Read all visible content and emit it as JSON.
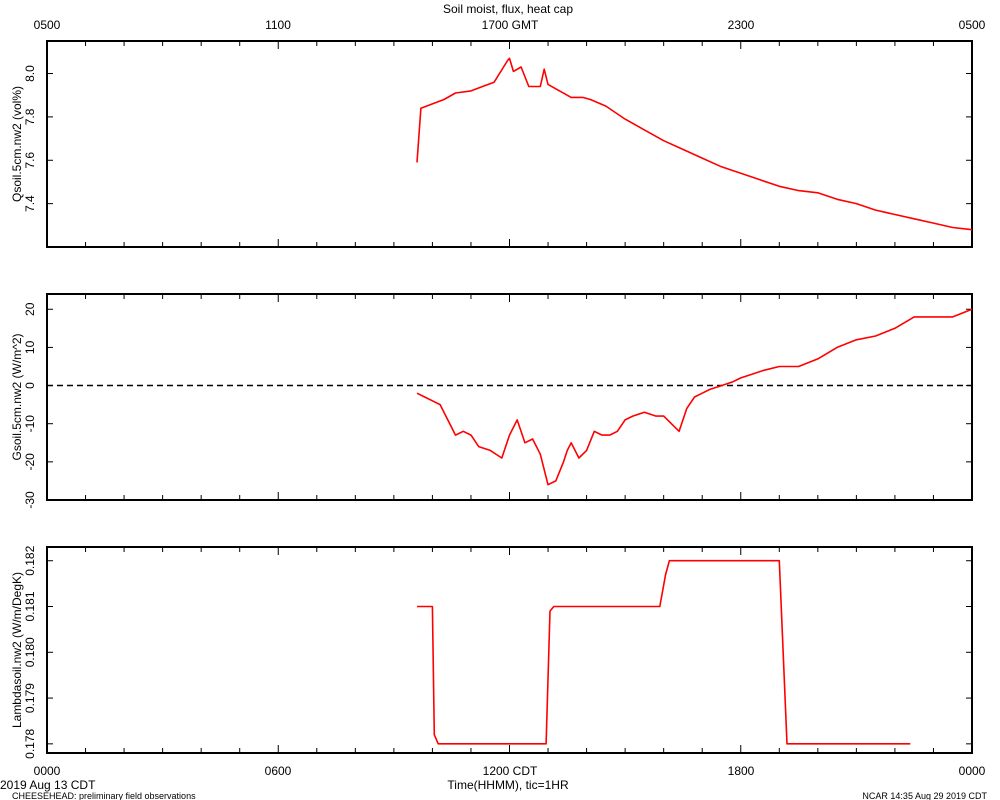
{
  "chart_data": {
    "type": "line",
    "title": "Soil moist, flux, heat cap",
    "top_axis": {
      "tick_labels": [
        "0500",
        "1100",
        "1700 GMT",
        "2300",
        "0500"
      ]
    },
    "bottom_axis": {
      "tick_labels": [
        "0000",
        "0600",
        "1200 CDT",
        "1800",
        "0000"
      ],
      "xlabel": "Time(HHMM), tic=1HR",
      "range_hours": [
        0,
        24
      ]
    },
    "footer": {
      "date": "2019 Aug 13 CDT",
      "left": "CHEESEHEAD: preliminary field observations",
      "right": "NCAR 14:35 Aug 29 2019 CDT"
    },
    "panels": [
      {
        "ylabel": "Qsoil.5cm.nw2 (vol%)",
        "ylim": [
          7.2,
          8.15
        ],
        "yticks": [
          7.4,
          7.6,
          7.8,
          8.0
        ],
        "ytick_labels": [
          "7.4",
          "7.6",
          "7.8",
          "8.0"
        ],
        "color": "#ff0000",
        "x": [
          9.6,
          9.7,
          10.0,
          10.3,
          10.6,
          11.0,
          11.3,
          11.6,
          11.95,
          12.0,
          12.1,
          12.3,
          12.5,
          12.8,
          12.9,
          13.0,
          13.3,
          13.6,
          13.9,
          14.1,
          14.5,
          15.0,
          15.5,
          16.0,
          16.5,
          17.0,
          17.5,
          18.0,
          18.5,
          19.0,
          19.5,
          20.0,
          20.5,
          21.0,
          21.5,
          22.0,
          22.5,
          23.0,
          23.5,
          24.0
        ],
        "y": [
          7.59,
          7.84,
          7.86,
          7.88,
          7.91,
          7.92,
          7.94,
          7.96,
          8.06,
          8.07,
          8.01,
          8.03,
          7.94,
          7.94,
          8.02,
          7.95,
          7.92,
          7.89,
          7.89,
          7.88,
          7.85,
          7.79,
          7.74,
          7.69,
          7.65,
          7.61,
          7.57,
          7.54,
          7.51,
          7.48,
          7.46,
          7.45,
          7.42,
          7.4,
          7.37,
          7.35,
          7.33,
          7.31,
          7.29,
          7.28
        ]
      },
      {
        "ylabel": "Gsoil.5cm.nw2 (W/m^2)",
        "ylim": [
          -30,
          24
        ],
        "yticks": [
          -30,
          -20,
          -10,
          0,
          10,
          20
        ],
        "ytick_labels": [
          "-30",
          "-20",
          "-10",
          "0",
          "10",
          "20"
        ],
        "zero_line": true,
        "color": "#ff0000",
        "x": [
          9.6,
          9.8,
          10.0,
          10.2,
          10.4,
          10.6,
          10.8,
          11.0,
          11.2,
          11.5,
          11.8,
          12.0,
          12.2,
          12.4,
          12.6,
          12.8,
          13.0,
          13.2,
          13.4,
          13.5,
          13.6,
          13.8,
          14.0,
          14.2,
          14.4,
          14.6,
          14.8,
          15.0,
          15.2,
          15.5,
          15.8,
          16.0,
          16.2,
          16.4,
          16.6,
          16.8,
          17.0,
          17.2,
          17.5,
          17.8,
          18.0,
          18.3,
          18.6,
          19.0,
          19.5,
          20.0,
          20.5,
          21.0,
          21.5,
          22.0,
          22.5,
          23.0,
          23.5,
          24.0
        ],
        "y": [
          -2,
          -3,
          -4,
          -5,
          -9,
          -13,
          -12,
          -13,
          -16,
          -17,
          -19,
          -13,
          -9,
          -15,
          -14,
          -18,
          -26,
          -25,
          -20,
          -17,
          -15,
          -19,
          -17,
          -12,
          -13,
          -13,
          -12,
          -9,
          -8,
          -7,
          -8,
          -8,
          -10,
          -12,
          -6,
          -3,
          -2,
          -1,
          0,
          1,
          2,
          3,
          4,
          5,
          5,
          7,
          10,
          12,
          13,
          15,
          18,
          18,
          18,
          20
        ]
      },
      {
        "ylabel": "Lambdasoil.nw2 (W/m/DegK)",
        "ylim": [
          0.1778,
          0.1823
        ],
        "yticks": [
          0.178,
          0.179,
          0.18,
          0.181,
          0.182
        ],
        "ytick_labels": [
          "0.178",
          "0.179",
          "0.180",
          "0.181",
          "0.182"
        ],
        "color": "#ff0000",
        "x": [
          9.6,
          10.0,
          10.05,
          10.15,
          12.95,
          13.05,
          13.15,
          15.9,
          16.05,
          16.15,
          19.0,
          19.2,
          22.4
        ],
        "y": [
          0.181,
          0.181,
          0.1782,
          0.178,
          0.178,
          0.1809,
          0.181,
          0.181,
          0.1817,
          0.182,
          0.182,
          0.178,
          0.178
        ]
      }
    ]
  }
}
